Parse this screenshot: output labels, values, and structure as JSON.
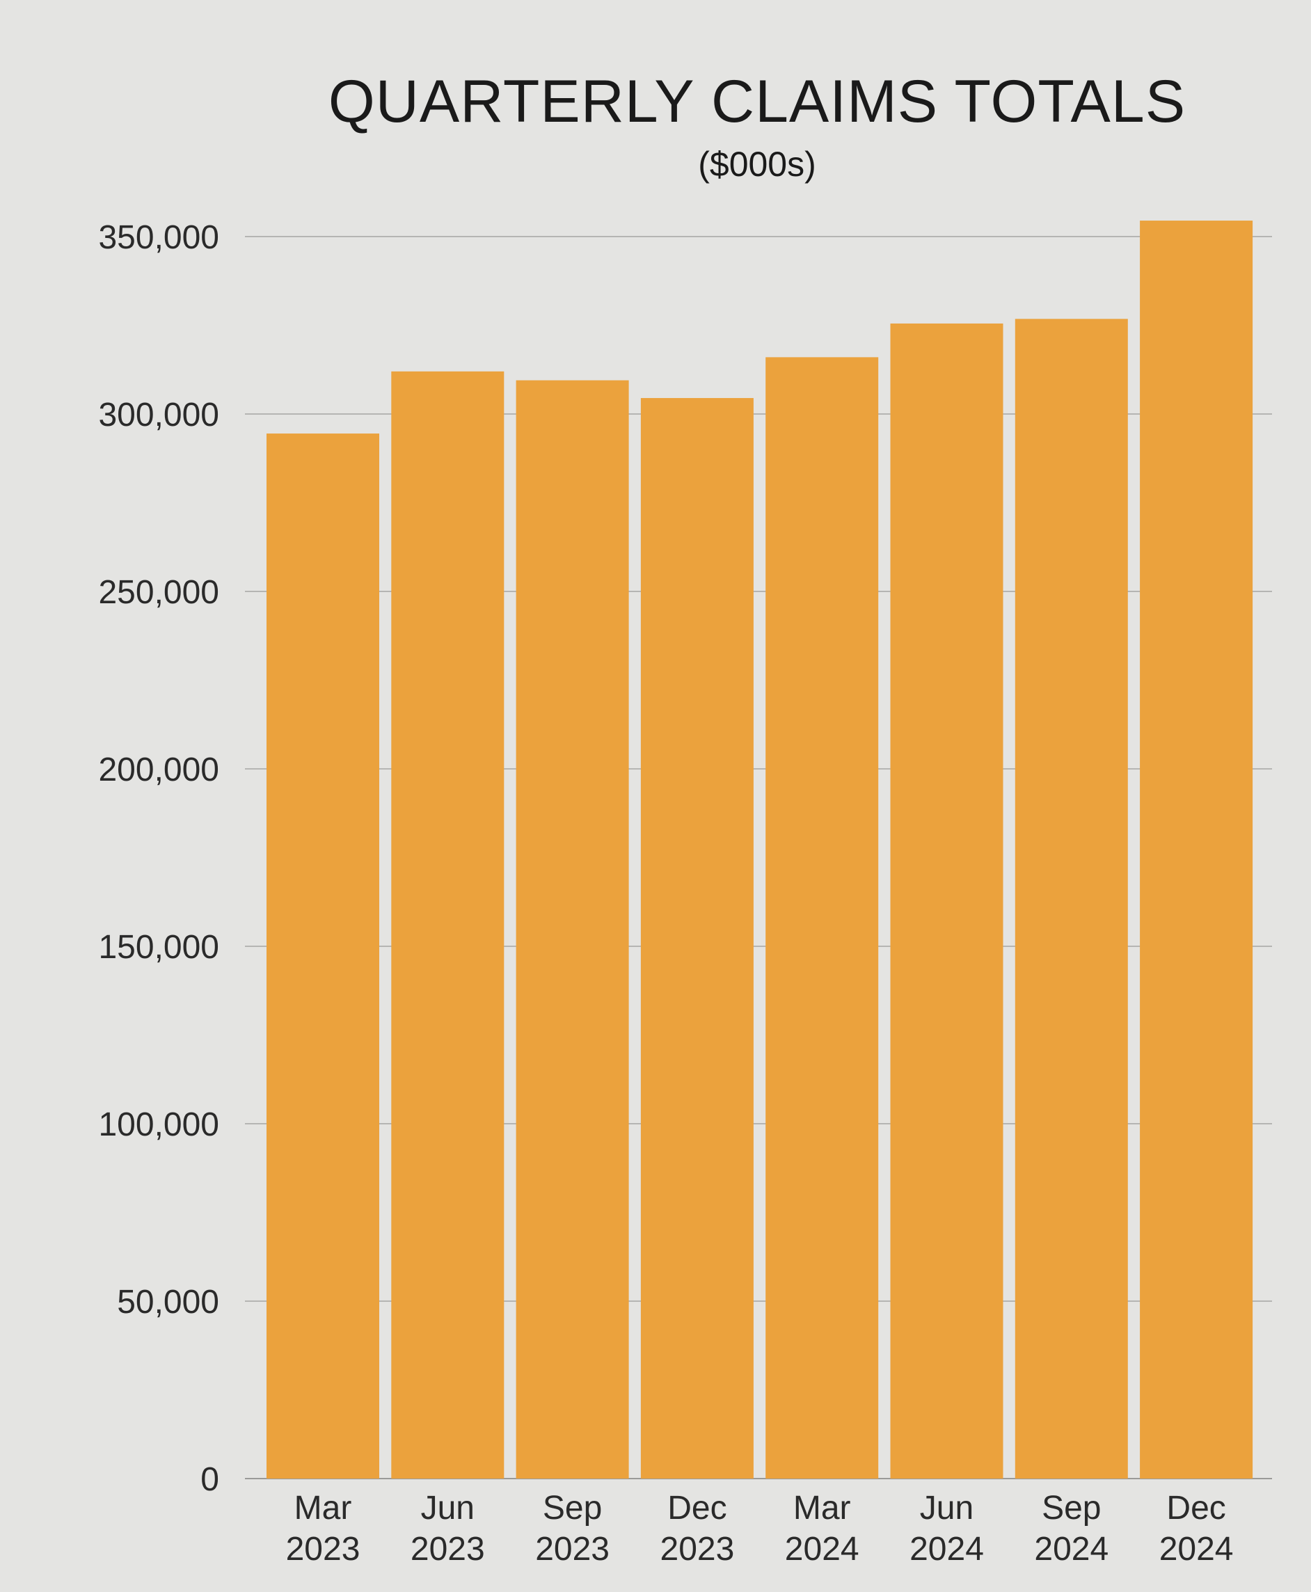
{
  "chart_data": {
    "type": "bar",
    "title": "QUARTERLY CLAIMS TOTALS",
    "subtitle": "($000s)",
    "xlabel": "",
    "ylabel": "",
    "categories": [
      [
        "Mar",
        "2023"
      ],
      [
        "Jun",
        "2023"
      ],
      [
        "Sep",
        "2023"
      ],
      [
        "Dec",
        "2023"
      ],
      [
        "Mar",
        "2024"
      ],
      [
        "Jun",
        "2024"
      ],
      [
        "Sep",
        "2024"
      ],
      [
        "Dec",
        "2024"
      ]
    ],
    "values": [
      294500,
      312000,
      309500,
      304500,
      316000,
      325500,
      326800,
      354500
    ],
    "ylim": [
      0,
      350000
    ],
    "yticks": [
      0,
      50000,
      100000,
      150000,
      200000,
      250000,
      300000,
      350000
    ],
    "ytick_labels": [
      "0",
      "50,000",
      "100,000",
      "150,000",
      "200,000",
      "250,000",
      "300,000",
      "350,000"
    ],
    "grid": true,
    "legend": "none",
    "colors": {
      "bar": "#eba23d",
      "background": "#e4e4e2",
      "gridline": "#b5b5b3"
    }
  }
}
